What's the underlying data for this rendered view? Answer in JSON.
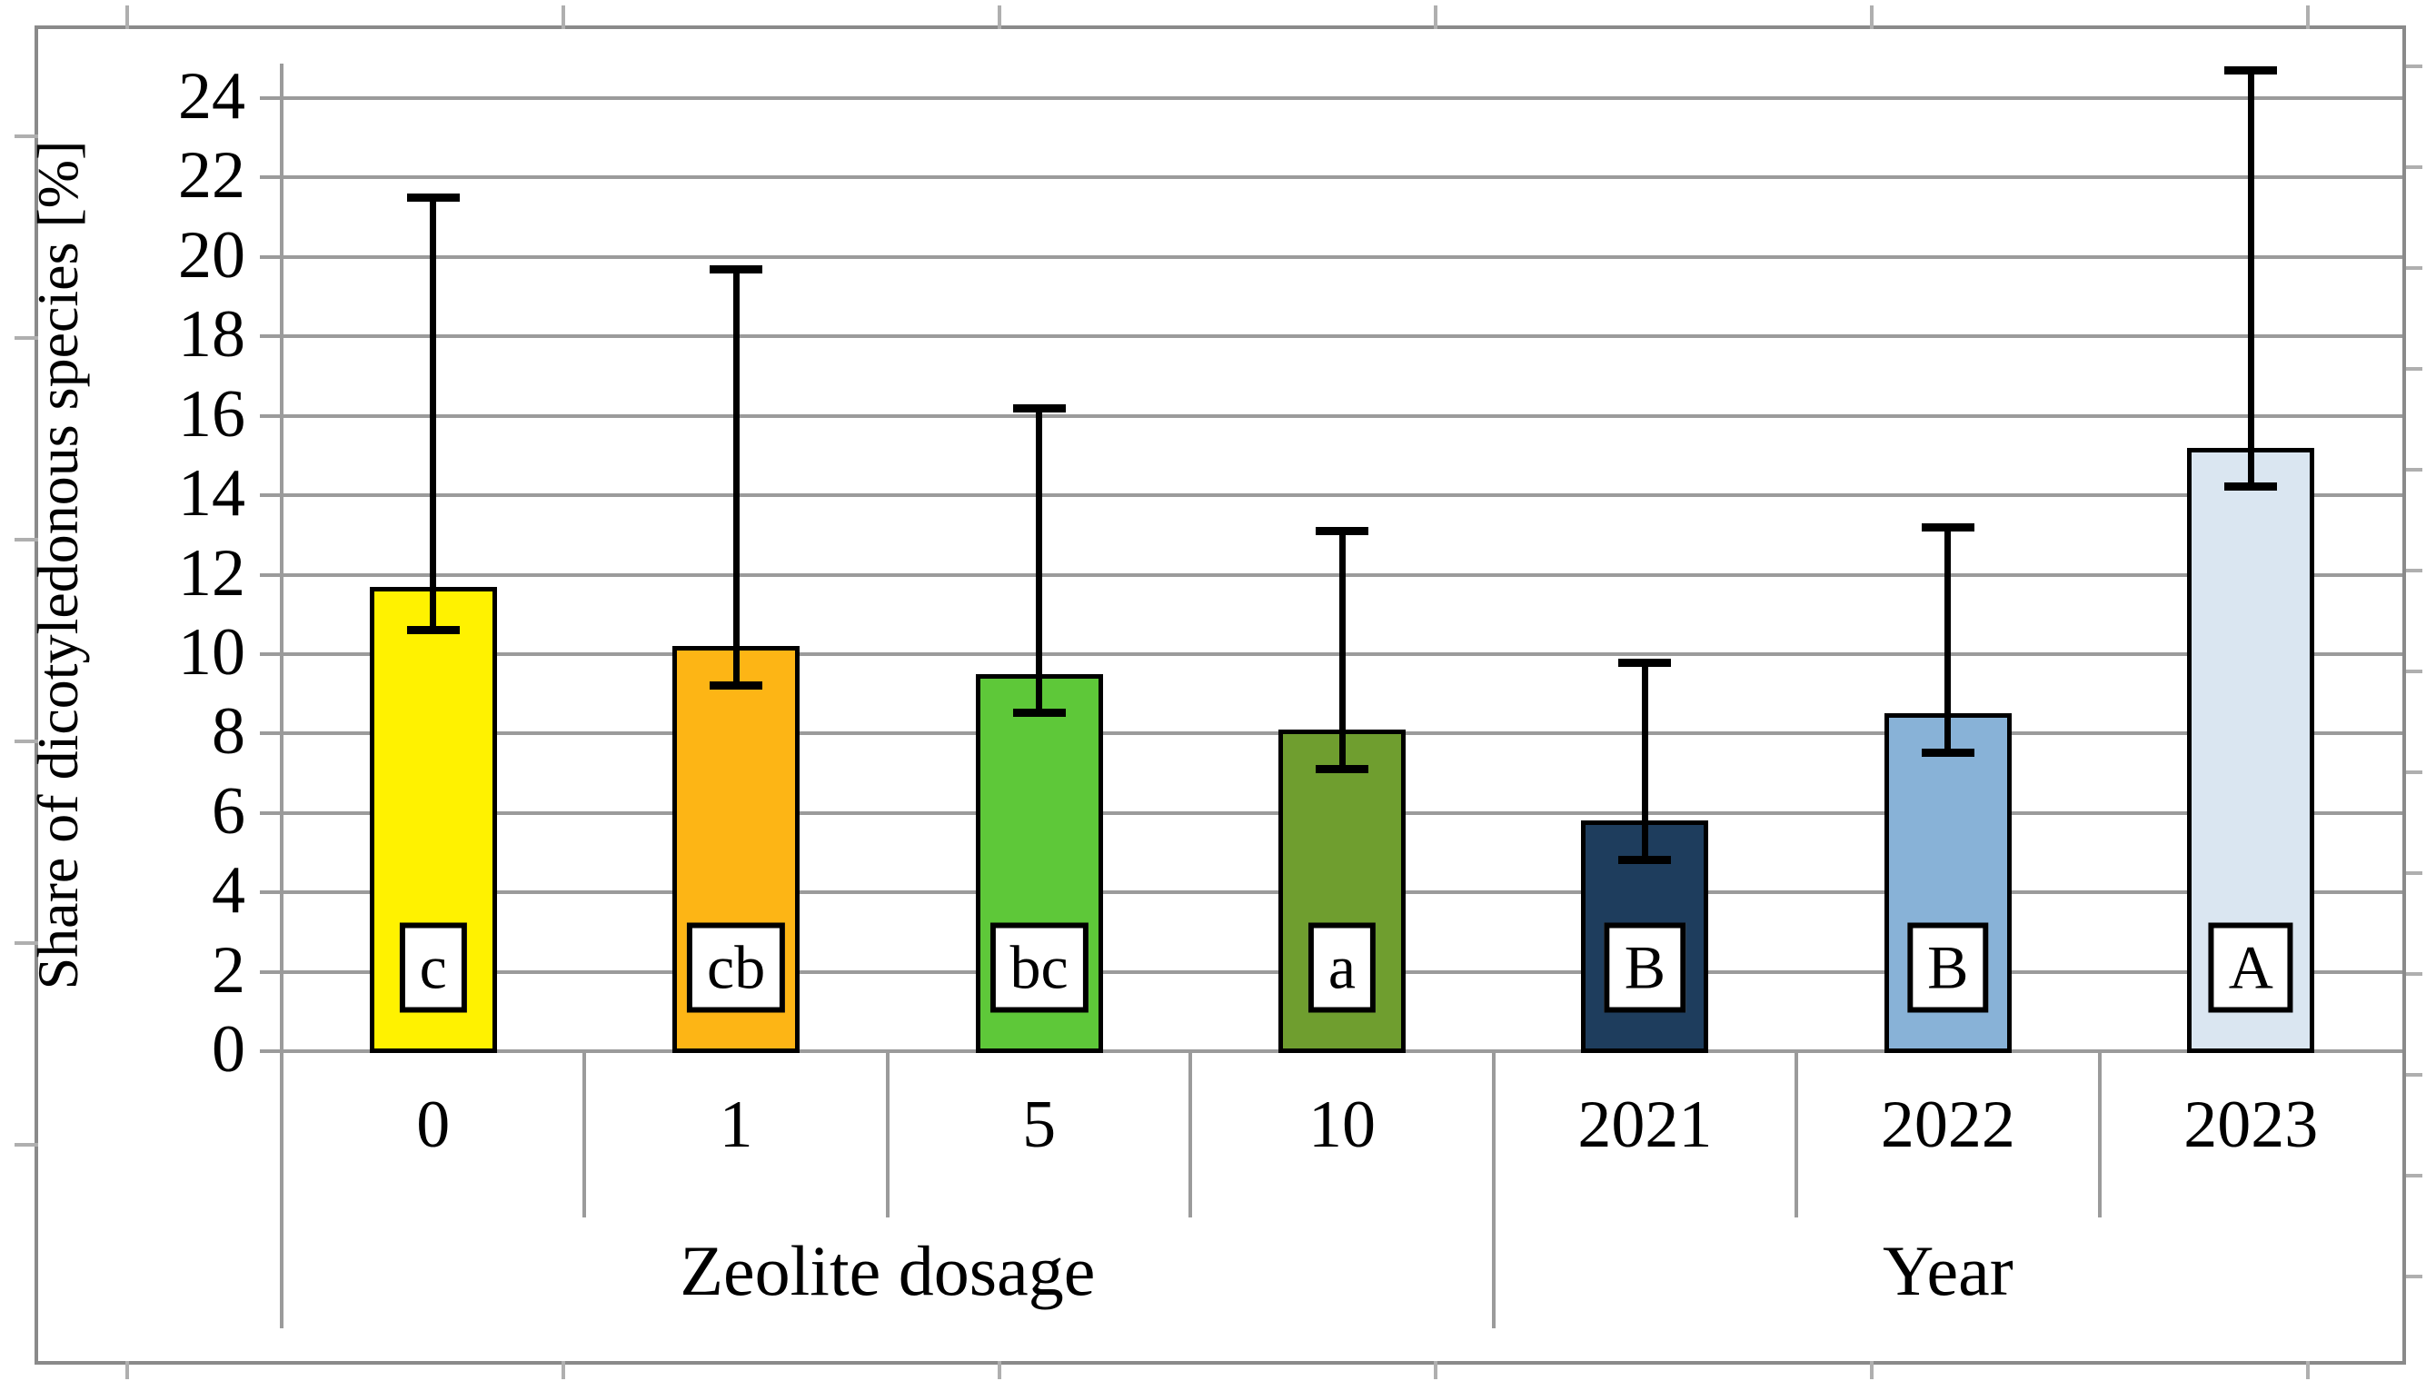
{
  "figure": {
    "background": "#FFFFFF",
    "border_color": "#8A8A8A",
    "gridline_color": "#9B9B9B",
    "stub_color": "#AFAFAF",
    "bar_outline_color": "#000000",
    "error_bar_color": "#000000"
  },
  "chart_data": {
    "type": "bar",
    "title": "",
    "ylabel": "Share of dicotyledonous species [%]",
    "xlabel": "",
    "ylim": [
      0,
      24
    ],
    "ytick_step": 2,
    "yticks": [
      0,
      2,
      4,
      6,
      8,
      10,
      12,
      14,
      16,
      18,
      20,
      22,
      24
    ],
    "grid": true,
    "legend": "none",
    "groups": [
      {
        "label": "Zeolite dosage",
        "categories": [
          "0",
          "1",
          "5",
          "10"
        ]
      },
      {
        "label": "Year",
        "categories": [
          "2021",
          "2022",
          "2023"
        ]
      }
    ],
    "bars": [
      {
        "group": "Zeolite dosage",
        "category": "0",
        "value": 11.7,
        "whisker_low": 10.6,
        "whisker_high": 21.5,
        "sig_letter": "c",
        "color": "#FFF200"
      },
      {
        "group": "Zeolite dosage",
        "category": "1",
        "value": 10.2,
        "whisker_low": 9.2,
        "whisker_high": 19.7,
        "sig_letter": "cb",
        "color": "#FDB515"
      },
      {
        "group": "Zeolite dosage",
        "category": "5",
        "value": 9.5,
        "whisker_low": 8.5,
        "whisker_high": 16.2,
        "sig_letter": "bc",
        "color": "#5EC839"
      },
      {
        "group": "Zeolite dosage",
        "category": "10",
        "value": 8.1,
        "whisker_low": 7.1,
        "whisker_high": 13.1,
        "sig_letter": "a",
        "color": "#6F9E2F"
      },
      {
        "group": "Year",
        "category": "2021",
        "value": 5.8,
        "whisker_low": 4.8,
        "whisker_high": 9.8,
        "sig_letter": "B",
        "color": "#1E3D5D"
      },
      {
        "group": "Year",
        "category": "2022",
        "value": 8.5,
        "whisker_low": 7.5,
        "whisker_high": 13.2,
        "sig_letter": "B",
        "color": "#88B2D7"
      },
      {
        "group": "Year",
        "category": "2023",
        "value": 15.2,
        "whisker_low": 14.2,
        "whisker_high": 24.7,
        "sig_letter": "A",
        "color": "#DAE6F1"
      }
    ]
  }
}
